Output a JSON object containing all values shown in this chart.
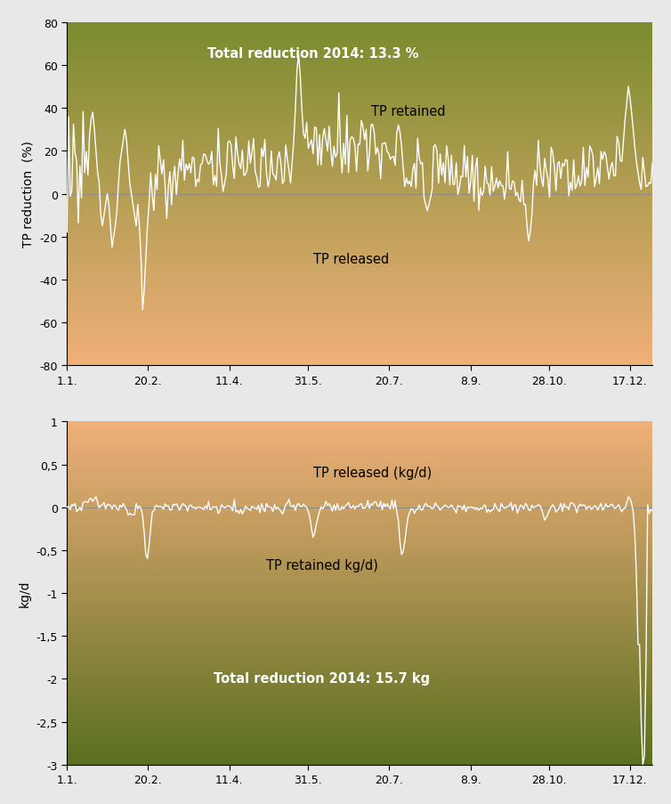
{
  "fig_width": 7.54,
  "fig_height": 9.04,
  "dpi": 100,
  "background_color": "#e8e8e8",
  "top_chart": {
    "ylim": [
      -80,
      80
    ],
    "ylabel": "TP reduction  (%)",
    "yticks": [
      -80,
      -60,
      -40,
      -20,
      0,
      20,
      40,
      60,
      80
    ],
    "ytick_labels": [
      "-80",
      "-60",
      "-40",
      "-20",
      "0",
      "20",
      "40",
      "60",
      "80"
    ],
    "annotation_top": "Total reduction 2014: 13.3 %",
    "annotation_top_color": "#ffffff",
    "label_retained": "TP retained",
    "label_released": "TP released",
    "color_top": "#7a8c2e",
    "color_bottom": "#f0b07a",
    "line_color": "#ffffff",
    "line_width": 1.0
  },
  "bottom_chart": {
    "ylim": [
      -3,
      1
    ],
    "ylabel": "kg/d",
    "yticks": [
      -3.0,
      -2.5,
      -2.0,
      -1.5,
      -1.0,
      -0.5,
      0.0,
      0.5,
      1.0
    ],
    "ytick_labels": [
      "-3",
      "-2,5",
      "-2",
      "-1,5",
      "-1",
      "-0,5",
      "0",
      "0,5",
      "1"
    ],
    "annotation_bottom": "Total reduction 2014: 15.7 kg",
    "annotation_bottom_color": "#ffffff",
    "label_retained": "TP retained kg/d)",
    "label_released": "TP released (kg/d)",
    "color_top": "#f0b07a",
    "color_bottom": "#5a7020",
    "line_color": "#ffffff",
    "line_width": 1.0
  },
  "xtick_labels": [
    "1.1.",
    "20.2.",
    "11.4.",
    "31.5.",
    "20.7.",
    "8.9.",
    "28.10.",
    "17.12."
  ],
  "xtick_positions": [
    0,
    50,
    101,
    150,
    200,
    251,
    300,
    350
  ],
  "n_points": 365
}
